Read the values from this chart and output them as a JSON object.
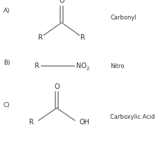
{
  "bg_color": "#ffffff",
  "line_color": "#888888",
  "text_color": "#333333",
  "label_A": "A)",
  "label_B": "B)",
  "label_C": "C)",
  "name_A": "Carbonyl",
  "name_B": "Nitro",
  "name_C": "Carboxylic Acid",
  "figsize": [
    2.34,
    2.16
  ],
  "dpi": 100
}
